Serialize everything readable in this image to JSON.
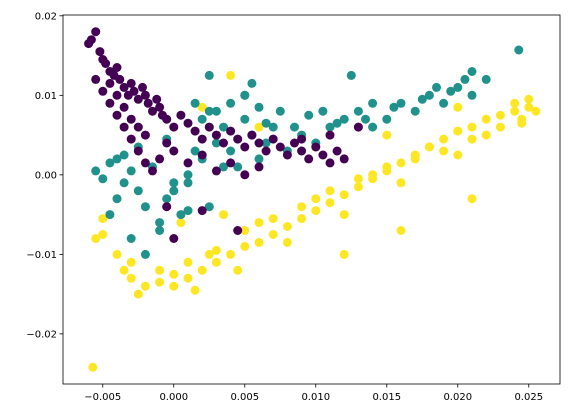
{
  "chart_data": {
    "type": "scatter",
    "title": "",
    "xlabel": "",
    "ylabel": "",
    "xlim": [
      -0.0078,
      0.0272
    ],
    "ylim": [
      -0.0263,
      0.0201
    ],
    "grid": false,
    "legend": "none",
    "x_ticks": [
      "−0.005",
      "0.000",
      "0.005",
      "0.010",
      "0.015",
      "0.020",
      "0.025"
    ],
    "x_tick_values": [
      -0.005,
      0.0,
      0.005,
      0.01,
      0.015,
      0.02,
      0.025
    ],
    "y_ticks": [
      "−0.02",
      "−0.01",
      "0.00",
      "0.01",
      "0.02"
    ],
    "y_tick_values": [
      -0.02,
      -0.01,
      0.0,
      0.01,
      0.02
    ],
    "series": [
      {
        "color": "#fde725",
        "x": [
          -0.0055,
          -0.005,
          -0.004,
          -0.003,
          -0.002,
          -0.001,
          0.0,
          0.001,
          0.002,
          0.003,
          0.004,
          0.005,
          0.006,
          0.007,
          0.008,
          0.009,
          0.01,
          0.011,
          0.012,
          0.013,
          0.014,
          0.015,
          0.016,
          0.017,
          0.018,
          0.019,
          0.02,
          0.021,
          0.022,
          0.023,
          0.024,
          0.025,
          0.0255,
          -0.003,
          -0.001,
          0.001,
          0.003,
          0.005,
          0.007,
          0.009,
          0.011,
          0.013,
          0.015,
          0.017,
          0.019,
          0.021,
          0.023,
          0.0245,
          -0.0025,
          0.0,
          0.0025,
          0.006,
          0.01,
          0.014,
          0.018,
          0.022,
          0.0245,
          -0.0035,
          0.0015,
          0.0045,
          0.008,
          0.012,
          0.016,
          0.02,
          0.024,
          -0.002,
          0.0005,
          0.0035,
          0.004,
          0.002,
          -0.004,
          -0.005,
          -0.0057,
          0.006,
          0.01,
          0.015,
          0.02,
          0.025,
          0.012,
          0.016,
          0.021
        ],
        "y": [
          -0.008,
          -0.0075,
          -0.01,
          -0.013,
          -0.014,
          -0.0135,
          -0.014,
          -0.013,
          -0.012,
          -0.011,
          -0.01,
          -0.009,
          -0.0085,
          -0.0075,
          -0.0065,
          -0.0055,
          -0.0045,
          -0.0035,
          -0.0025,
          -0.0015,
          -0.0005,
          0.0005,
          0.0015,
          0.0025,
          0.0035,
          0.0045,
          0.0055,
          0.006,
          0.007,
          0.0075,
          0.008,
          0.0085,
          0.008,
          -0.011,
          -0.012,
          -0.011,
          -0.0095,
          -0.007,
          -0.0055,
          -0.004,
          -0.002,
          -0.0005,
          0.001,
          0.002,
          0.003,
          0.0045,
          0.006,
          0.007,
          -0.015,
          -0.0125,
          -0.01,
          -0.006,
          -0.003,
          0.0,
          0.0035,
          0.005,
          0.0065,
          -0.012,
          -0.0145,
          -0.012,
          -0.0085,
          -0.005,
          -0.001,
          0.0025,
          0.009,
          -0.004,
          -0.006,
          -0.005,
          0.0125,
          0.0085,
          -0.003,
          -0.0055,
          -0.0242,
          0.006,
          0.0035,
          0.005,
          0.0085,
          0.0095,
          -0.01,
          -0.007,
          -0.003
        ]
      },
      {
        "color": "#21918c",
        "x": [
          -0.0055,
          -0.005,
          -0.0045,
          -0.004,
          -0.0035,
          -0.003,
          -0.0025,
          -0.002,
          -0.0015,
          -0.001,
          -0.0005,
          0.0,
          0.0005,
          0.001,
          0.0015,
          0.002,
          0.0025,
          0.003,
          0.0035,
          0.004,
          0.0045,
          0.005,
          0.0055,
          0.006,
          0.0065,
          0.007,
          0.008,
          0.009,
          0.01,
          0.011,
          0.012,
          0.013,
          0.014,
          0.015,
          0.016,
          0.017,
          0.018,
          0.019,
          0.02,
          0.021,
          0.022,
          0.0025,
          0.0055,
          0.0125,
          0.021,
          0.0243,
          -0.004,
          -0.003,
          -0.002,
          -0.001,
          0.0,
          0.001,
          0.002,
          0.003,
          0.004,
          0.005,
          0.006,
          0.0075,
          0.0095,
          0.0115,
          0.0135,
          0.0155,
          0.0175,
          0.0195,
          -0.0035,
          -0.0005,
          0.0025,
          -0.0045,
          0.0015,
          0.005,
          0.0085,
          0.0105,
          0.014,
          0.0185,
          0.0205,
          -0.0025,
          0.001,
          0.0035,
          0.0065
        ],
        "y": [
          0.0005,
          -0.0005,
          0.0015,
          0.002,
          -0.001,
          0.0005,
          -0.002,
          -0.004,
          0.001,
          -0.006,
          -0.003,
          -0.001,
          -0.005,
          0.0,
          0.003,
          0.002,
          -0.004,
          0.004,
          0.006,
          0.003,
          0.001,
          0.007,
          0.005,
          0.002,
          0.004,
          0.006,
          0.003,
          0.005,
          0.004,
          0.006,
          0.007,
          0.008,
          0.006,
          0.007,
          0.009,
          0.008,
          0.01,
          0.009,
          0.011,
          0.01,
          0.012,
          0.0125,
          0.0115,
          0.0125,
          0.013,
          0.0157,
          -0.003,
          -0.008,
          -0.01,
          -0.007,
          -0.002,
          -0.0045,
          0.007,
          0.008,
          0.009,
          0.01,
          0.0085,
          0.008,
          0.0075,
          0.0065,
          0.007,
          0.0085,
          0.0095,
          0.0105,
          0.0025,
          0.0045,
          0.008,
          -0.005,
          0.009,
          0.01,
          0.006,
          0.008,
          0.009,
          0.011,
          0.012,
          0.0035,
          -0.001,
          0.001,
          0.0065
        ]
      },
      {
        "color": "#440154",
        "x": [
          -0.006,
          -0.0058,
          -0.0055,
          -0.0052,
          -0.005,
          -0.0048,
          -0.0045,
          -0.0042,
          -0.004,
          -0.0038,
          -0.0035,
          -0.0032,
          -0.003,
          -0.0028,
          -0.0025,
          -0.0022,
          -0.002,
          -0.0018,
          -0.0015,
          -0.0012,
          -0.001,
          -0.0008,
          -0.0005,
          0.0,
          0.0005,
          0.001,
          0.0015,
          0.002,
          0.0025,
          0.003,
          0.0035,
          0.004,
          0.0045,
          0.005,
          0.0055,
          0.006,
          0.0065,
          0.007,
          0.0075,
          0.008,
          0.0085,
          0.009,
          0.0095,
          0.01,
          0.0105,
          0.011,
          0.0115,
          0.012,
          -0.0045,
          -0.004,
          -0.0035,
          -0.003,
          -0.0025,
          -0.002,
          -0.0015,
          -0.001,
          -0.0005,
          0.0,
          0.001,
          0.002,
          0.003,
          0.004,
          0.005,
          0.006,
          -0.0055,
          -0.005,
          -0.0045,
          -0.004,
          -0.0035,
          -0.003,
          -0.0025,
          -0.002,
          0.002,
          0.0045,
          0.0,
          -0.0005,
          0.013,
          0.011,
          0.009
        ],
        "y": [
          0.0165,
          0.017,
          0.018,
          0.0155,
          0.0145,
          0.014,
          0.013,
          0.0125,
          0.0135,
          0.012,
          0.011,
          0.01,
          0.0115,
          0.0105,
          0.0095,
          0.011,
          0.01,
          0.009,
          0.008,
          0.0095,
          0.0085,
          0.0075,
          0.007,
          0.006,
          0.0075,
          0.0065,
          0.0055,
          0.0045,
          0.006,
          0.005,
          0.004,
          0.0055,
          0.0045,
          0.0035,
          0.005,
          0.004,
          0.003,
          0.0045,
          0.0035,
          0.0025,
          0.004,
          0.003,
          0.002,
          0.0035,
          0.0025,
          0.0015,
          0.003,
          0.002,
          0.009,
          0.0075,
          0.006,
          0.0045,
          0.003,
          0.0015,
          0.0005,
          0.002,
          0.004,
          0.003,
          0.0015,
          0.0025,
          0.0005,
          0.0015,
          0.0,
          0.001,
          0.012,
          0.0105,
          0.0115,
          0.01,
          0.0085,
          0.007,
          0.006,
          0.005,
          -0.0045,
          -0.007,
          -0.008,
          -0.004,
          0.006,
          0.005,
          0.0045
        ]
      }
    ]
  }
}
